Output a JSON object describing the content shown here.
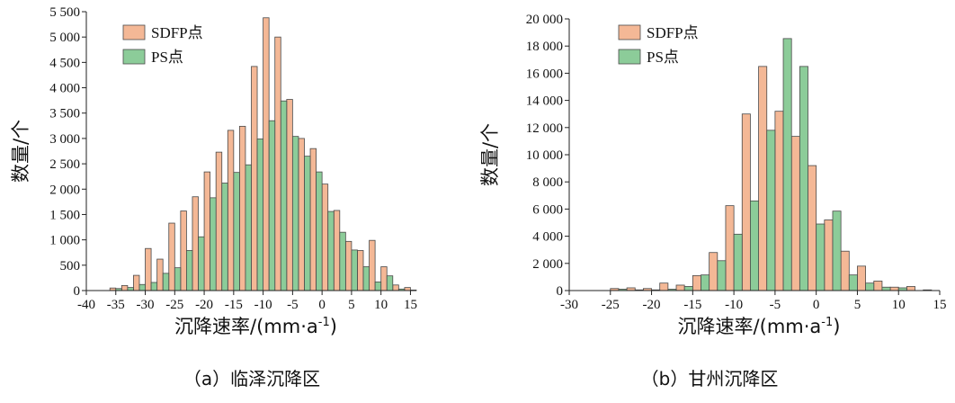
{
  "colors": {
    "sdfp": "#f4b896",
    "ps": "#8ccc99",
    "edge": "#4a4a4a"
  },
  "chart_data": [
    {
      "type": "bar",
      "caption": "（a）临泽沉降区",
      "xlabel": "沉降速率/(mm·a",
      "xlabel_sup": "-1",
      "xlabel_end": ")",
      "ylabel": "数量/个",
      "xlim": [
        -40,
        16
      ],
      "ylim": [
        0,
        5500
      ],
      "xticks": [
        "-40",
        "-35",
        "-30",
        "-25",
        "-20",
        "-15",
        "-10",
        "-5",
        "0",
        "5",
        "10",
        "15"
      ],
      "xtick_values": [
        -40,
        -35,
        -30,
        -25,
        -20,
        -15,
        -10,
        -5,
        0,
        5,
        10,
        15
      ],
      "yticks": [
        "0",
        "500",
        "1 000",
        "1 500",
        "2 000",
        "2 500",
        "3 000",
        "3 500",
        "4 000",
        "4 500",
        "5 000",
        "5 500"
      ],
      "ytick_values": [
        0,
        500,
        1000,
        1500,
        2000,
        2500,
        3000,
        3500,
        4000,
        4500,
        5000,
        5500
      ],
      "bin_width": 2,
      "bin_centers": [
        -35,
        -33,
        -31,
        -29,
        -27,
        -25,
        -23,
        -21,
        -19,
        -17,
        -15,
        -13,
        -11,
        -9,
        -7,
        -5,
        -3,
        -1,
        1,
        3,
        5,
        7,
        9,
        11,
        13,
        15
      ],
      "series": [
        {
          "name": "SDFP点",
          "values": [
            50,
            100,
            300,
            830,
            620,
            1330,
            1570,
            1850,
            2340,
            2730,
            3160,
            3240,
            4420,
            5380,
            5000,
            3770,
            3000,
            2800,
            2100,
            1580,
            970,
            790,
            990,
            470,
            110,
            60
          ]
        },
        {
          "name": "PS点",
          "values": [
            40,
            60,
            120,
            160,
            340,
            450,
            790,
            1060,
            1830,
            2120,
            2330,
            2480,
            2990,
            3350,
            3740,
            3040,
            2650,
            2340,
            1560,
            1150,
            800,
            470,
            170,
            290,
            30,
            10
          ]
        }
      ]
    },
    {
      "type": "bar",
      "caption": "（b）甘州沉降区",
      "xlabel": "沉降速率/(mm·a",
      "xlabel_sup": "-1",
      "xlabel_end": ")",
      "ylabel": "数量/个",
      "xlim": [
        -30,
        15
      ],
      "ylim": [
        0,
        20000
      ],
      "xticks": [
        "-30",
        "-25",
        "-20",
        "-15",
        "-10",
        "-5",
        "0",
        "5",
        "10",
        "15"
      ],
      "xtick_values": [
        -30,
        -25,
        -20,
        -15,
        -10,
        -5,
        0,
        5,
        10,
        15
      ],
      "yticks": [
        "0",
        "2 000",
        "4 000",
        "6 000",
        "8 000",
        "10 000",
        "12 000",
        "14 000",
        "16 000",
        "18 000",
        "20 000"
      ],
      "ytick_values": [
        0,
        2000,
        4000,
        6000,
        8000,
        10000,
        12000,
        14000,
        16000,
        18000,
        20000
      ],
      "bin_width": 2,
      "bin_centers": [
        -28,
        -26,
        -24,
        -22,
        -20,
        -18,
        -16,
        -14,
        -12,
        -10,
        -8,
        -6,
        -4,
        -2,
        0,
        2,
        4,
        6,
        8,
        10,
        12,
        14
      ],
      "series": [
        {
          "name": "SDFP点",
          "values": [
            0,
            0,
            150,
            200,
            150,
            550,
            400,
            1100,
            2800,
            6250,
            13000,
            16500,
            13200,
            11350,
            9200,
            5200,
            2900,
            1800,
            700,
            250,
            300,
            50
          ]
        },
        {
          "name": "PS点",
          "values": [
            0,
            0,
            100,
            50,
            50,
            100,
            300,
            1150,
            2200,
            4150,
            6600,
            11800,
            18550,
            16500,
            4900,
            5850,
            1150,
            550,
            250,
            200,
            0,
            0
          ]
        }
      ]
    }
  ]
}
